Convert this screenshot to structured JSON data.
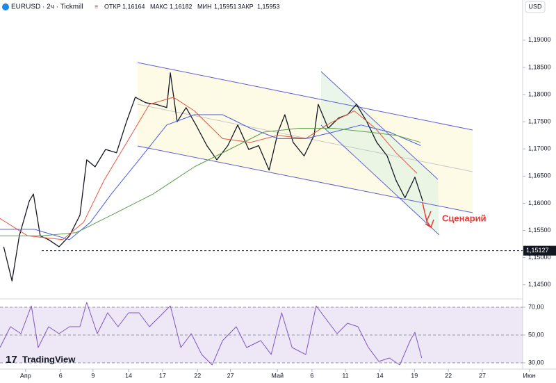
{
  "header": {
    "symbol": "EURUSD · 2ч · Tickmill",
    "open_label": "ОТКР",
    "open": "1,16164",
    "high_label": "МАКС",
    "high": "1,16182",
    "low_label": "МИН",
    "low": "1,15951",
    "close_label": "ЗАКР",
    "close": "1,15953",
    "currency": "USD",
    "logo": "TradingView"
  },
  "chart_data": [
    {
      "type": "line",
      "annotation": "Сценарий",
      "last_price": {
        "value": 1.15127,
        "label": "1,15127"
      },
      "xlim": [
        0,
        106
      ],
      "xticks": [
        {
          "value": 4.9,
          "label": "Апр"
        },
        {
          "value": 11.6,
          "label": "6"
        },
        {
          "value": 17.8,
          "label": "9"
        },
        {
          "value": 24.6,
          "label": "14"
        },
        {
          "value": 31.1,
          "label": "17"
        },
        {
          "value": 37.8,
          "label": "22"
        },
        {
          "value": 44.1,
          "label": "27"
        },
        {
          "value": 53.1,
          "label": "Май"
        },
        {
          "value": 59.7,
          "label": "6"
        },
        {
          "value": 66.1,
          "label": "11"
        },
        {
          "value": 72.7,
          "label": "14"
        },
        {
          "value": 79.3,
          "label": "19"
        },
        {
          "value": 85.8,
          "label": "22"
        },
        {
          "value": 92.3,
          "label": "27"
        },
        {
          "value": 101.3,
          "label": "Июн"
        }
      ],
      "ylim": [
        1.1424,
        1.1974
      ],
      "yticks": [
        {
          "value": 1.145,
          "label": "1,14500"
        },
        {
          "value": 1.15,
          "label": "1,15000"
        },
        {
          "value": 1.155,
          "label": "1,15500"
        },
        {
          "value": 1.16,
          "label": "1,16000"
        },
        {
          "value": 1.165,
          "label": "1,16500"
        },
        {
          "value": 1.17,
          "label": "1,17000"
        },
        {
          "value": 1.175,
          "label": "1,17500"
        },
        {
          "value": 1.18,
          "label": "1,18000"
        },
        {
          "value": 1.185,
          "label": "1,18500"
        },
        {
          "value": 1.19,
          "label": "1,19000"
        }
      ],
      "series": [
        {
          "color": "#131722",
          "width": 1.3,
          "x": [
            0.7,
            2.3,
            3.7,
            5.6,
            6.4,
            7.7,
            9.3,
            11.3,
            13.3,
            15.3,
            16.6,
            18.2,
            20.2,
            22.3,
            24.2,
            25.9,
            27.9,
            29.9,
            31.9,
            32.6,
            33.9,
            35.6,
            37.5,
            39.6,
            41.5,
            43.6,
            45.5,
            47.6,
            49.5,
            51.5,
            53.2,
            54.5,
            56.1,
            58.2,
            60.1,
            60.9,
            62.8,
            64.8,
            66.5,
            68.2,
            70.2,
            72.1,
            74.1,
            75.8,
            77.5,
            79.4,
            80.9
          ],
          "values": [
            1.152,
            1.1457,
            1.154,
            1.1604,
            1.1617,
            1.154,
            1.1533,
            1.152,
            1.154,
            1.1578,
            1.168,
            1.1667,
            1.1699,
            1.1693,
            1.175,
            1.1795,
            1.1785,
            1.1782,
            1.1776,
            1.184,
            1.175,
            1.1776,
            1.1744,
            1.1706,
            1.168,
            1.1706,
            1.1744,
            1.1699,
            1.1706,
            1.1661,
            1.1731,
            1.1763,
            1.1712,
            1.1687,
            1.1725,
            1.1782,
            1.1738,
            1.1757,
            1.1763,
            1.1782,
            1.175,
            1.1712,
            1.1687,
            1.1642,
            1.161,
            1.1648,
            1.1604
          ]
        },
        {
          "color": "#e8553f",
          "width": 1,
          "x": [
            0,
            5.3,
            12.0,
            16.0,
            19.9,
            23.9,
            28.6,
            33.2,
            37.2,
            42.6,
            47.9,
            53.2,
            58.5,
            62.5,
            67.8,
            71.8,
            75.8,
            79.8
          ],
          "values": [
            1.1572,
            1.154,
            1.1533,
            1.1565,
            1.1642,
            1.1706,
            1.1782,
            1.1795,
            1.177,
            1.1719,
            1.1712,
            1.1725,
            1.1719,
            1.1744,
            1.177,
            1.1738,
            1.1693,
            1.1655
          ]
        },
        {
          "color": "#4a5de0",
          "width": 1,
          "x": [
            0,
            6.6,
            13.3,
            17.3,
            21.3,
            26.6,
            31.9,
            37.2,
            42.6,
            47.9,
            53.2,
            58.5,
            63.8,
            69.1,
            74.5,
            80.5
          ],
          "values": [
            1.1552,
            1.1552,
            1.1533,
            1.1565,
            1.1617,
            1.168,
            1.1744,
            1.1763,
            1.1763,
            1.1738,
            1.1719,
            1.1719,
            1.1731,
            1.1744,
            1.1731,
            1.1706
          ]
        },
        {
          "color": "#5a9e4a",
          "width": 1,
          "x": [
            0,
            8.0,
            14.6,
            21.3,
            29.3,
            37.2,
            43.9,
            50.5,
            57.2,
            63.8,
            70.5,
            75.8,
            80.5
          ],
          "values": [
            1.154,
            1.154,
            1.1546,
            1.1578,
            1.1617,
            1.1667,
            1.1699,
            1.1731,
            1.1738,
            1.1738,
            1.1731,
            1.1725,
            1.1712
          ]
        }
      ]
    },
    {
      "type": "line",
      "xlim": [
        0,
        106
      ],
      "ylim": [
        26,
        75
      ],
      "yticks": [
        {
          "value": 30,
          "label": "30,00"
        },
        {
          "value": 50,
          "label": "50,00"
        },
        {
          "value": 70,
          "label": "70,00"
        }
      ],
      "series": [
        {
          "color": "#7e57c2",
          "width": 1,
          "x": [
            0,
            2.0,
            4.0,
            6.0,
            7.3,
            9.3,
            11.3,
            13.3,
            15.3,
            16.6,
            18.6,
            20.6,
            22.6,
            24.6,
            26.6,
            28.6,
            30.6,
            32.6,
            34.6,
            36.6,
            38.6,
            40.6,
            42.6,
            45.2,
            47.2,
            49.9,
            51.9,
            53.9,
            55.9,
            58.5,
            60.5,
            62.5,
            64.5,
            66.5,
            68.5,
            70.5,
            72.5,
            74.5,
            76.5,
            78.5,
            79.4,
            80.7
          ],
          "values": [
            41,
            56,
            51,
            71,
            41,
            56,
            51,
            56,
            56,
            73.5,
            51,
            66,
            56,
            66,
            66,
            56,
            63.5,
            71,
            41,
            51,
            36,
            28.5,
            46,
            56,
            41,
            46,
            36,
            66,
            41,
            36,
            71,
            61,
            51,
            58.5,
            56,
            41,
            31,
            33.5,
            28.5,
            46,
            52,
            33.5
          ]
        }
      ]
    }
  ]
}
